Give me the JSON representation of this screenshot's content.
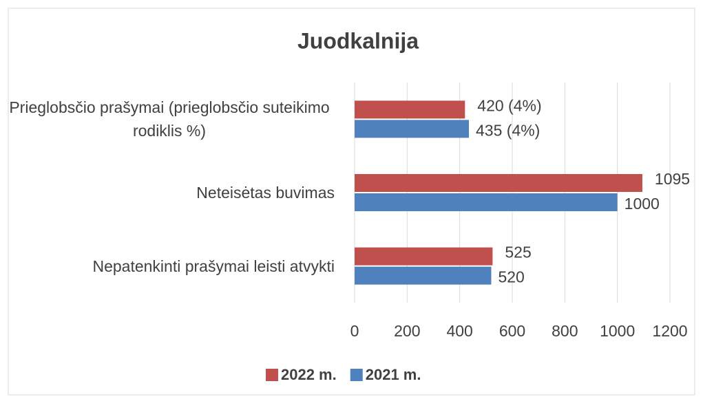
{
  "chart_data": {
    "type": "barh",
    "title": "Juodkalnija",
    "categories": [
      "Prieglobsčio prašymai (prieglobsčio suteikimo rodiklis %)",
      "Neteisėtas buvimas",
      "Nepatenkinti prašymai leisti atvykti"
    ],
    "series": [
      {
        "name": "2022 m.",
        "color": "#c0504d",
        "values": [
          420,
          1095,
          525
        ],
        "value_labels": [
          "420 (4%)",
          "1095",
          "525"
        ]
      },
      {
        "name": "2021 m.",
        "color": "#4f81bd",
        "values": [
          435,
          1000,
          520
        ],
        "value_labels": [
          "435 (4%)",
          "1000",
          "520"
        ]
      }
    ],
    "xlim": [
      0,
      1200
    ],
    "xticks": [
      0,
      200,
      400,
      600,
      800,
      1000,
      1200
    ],
    "grid": true,
    "legend": "bottom"
  }
}
